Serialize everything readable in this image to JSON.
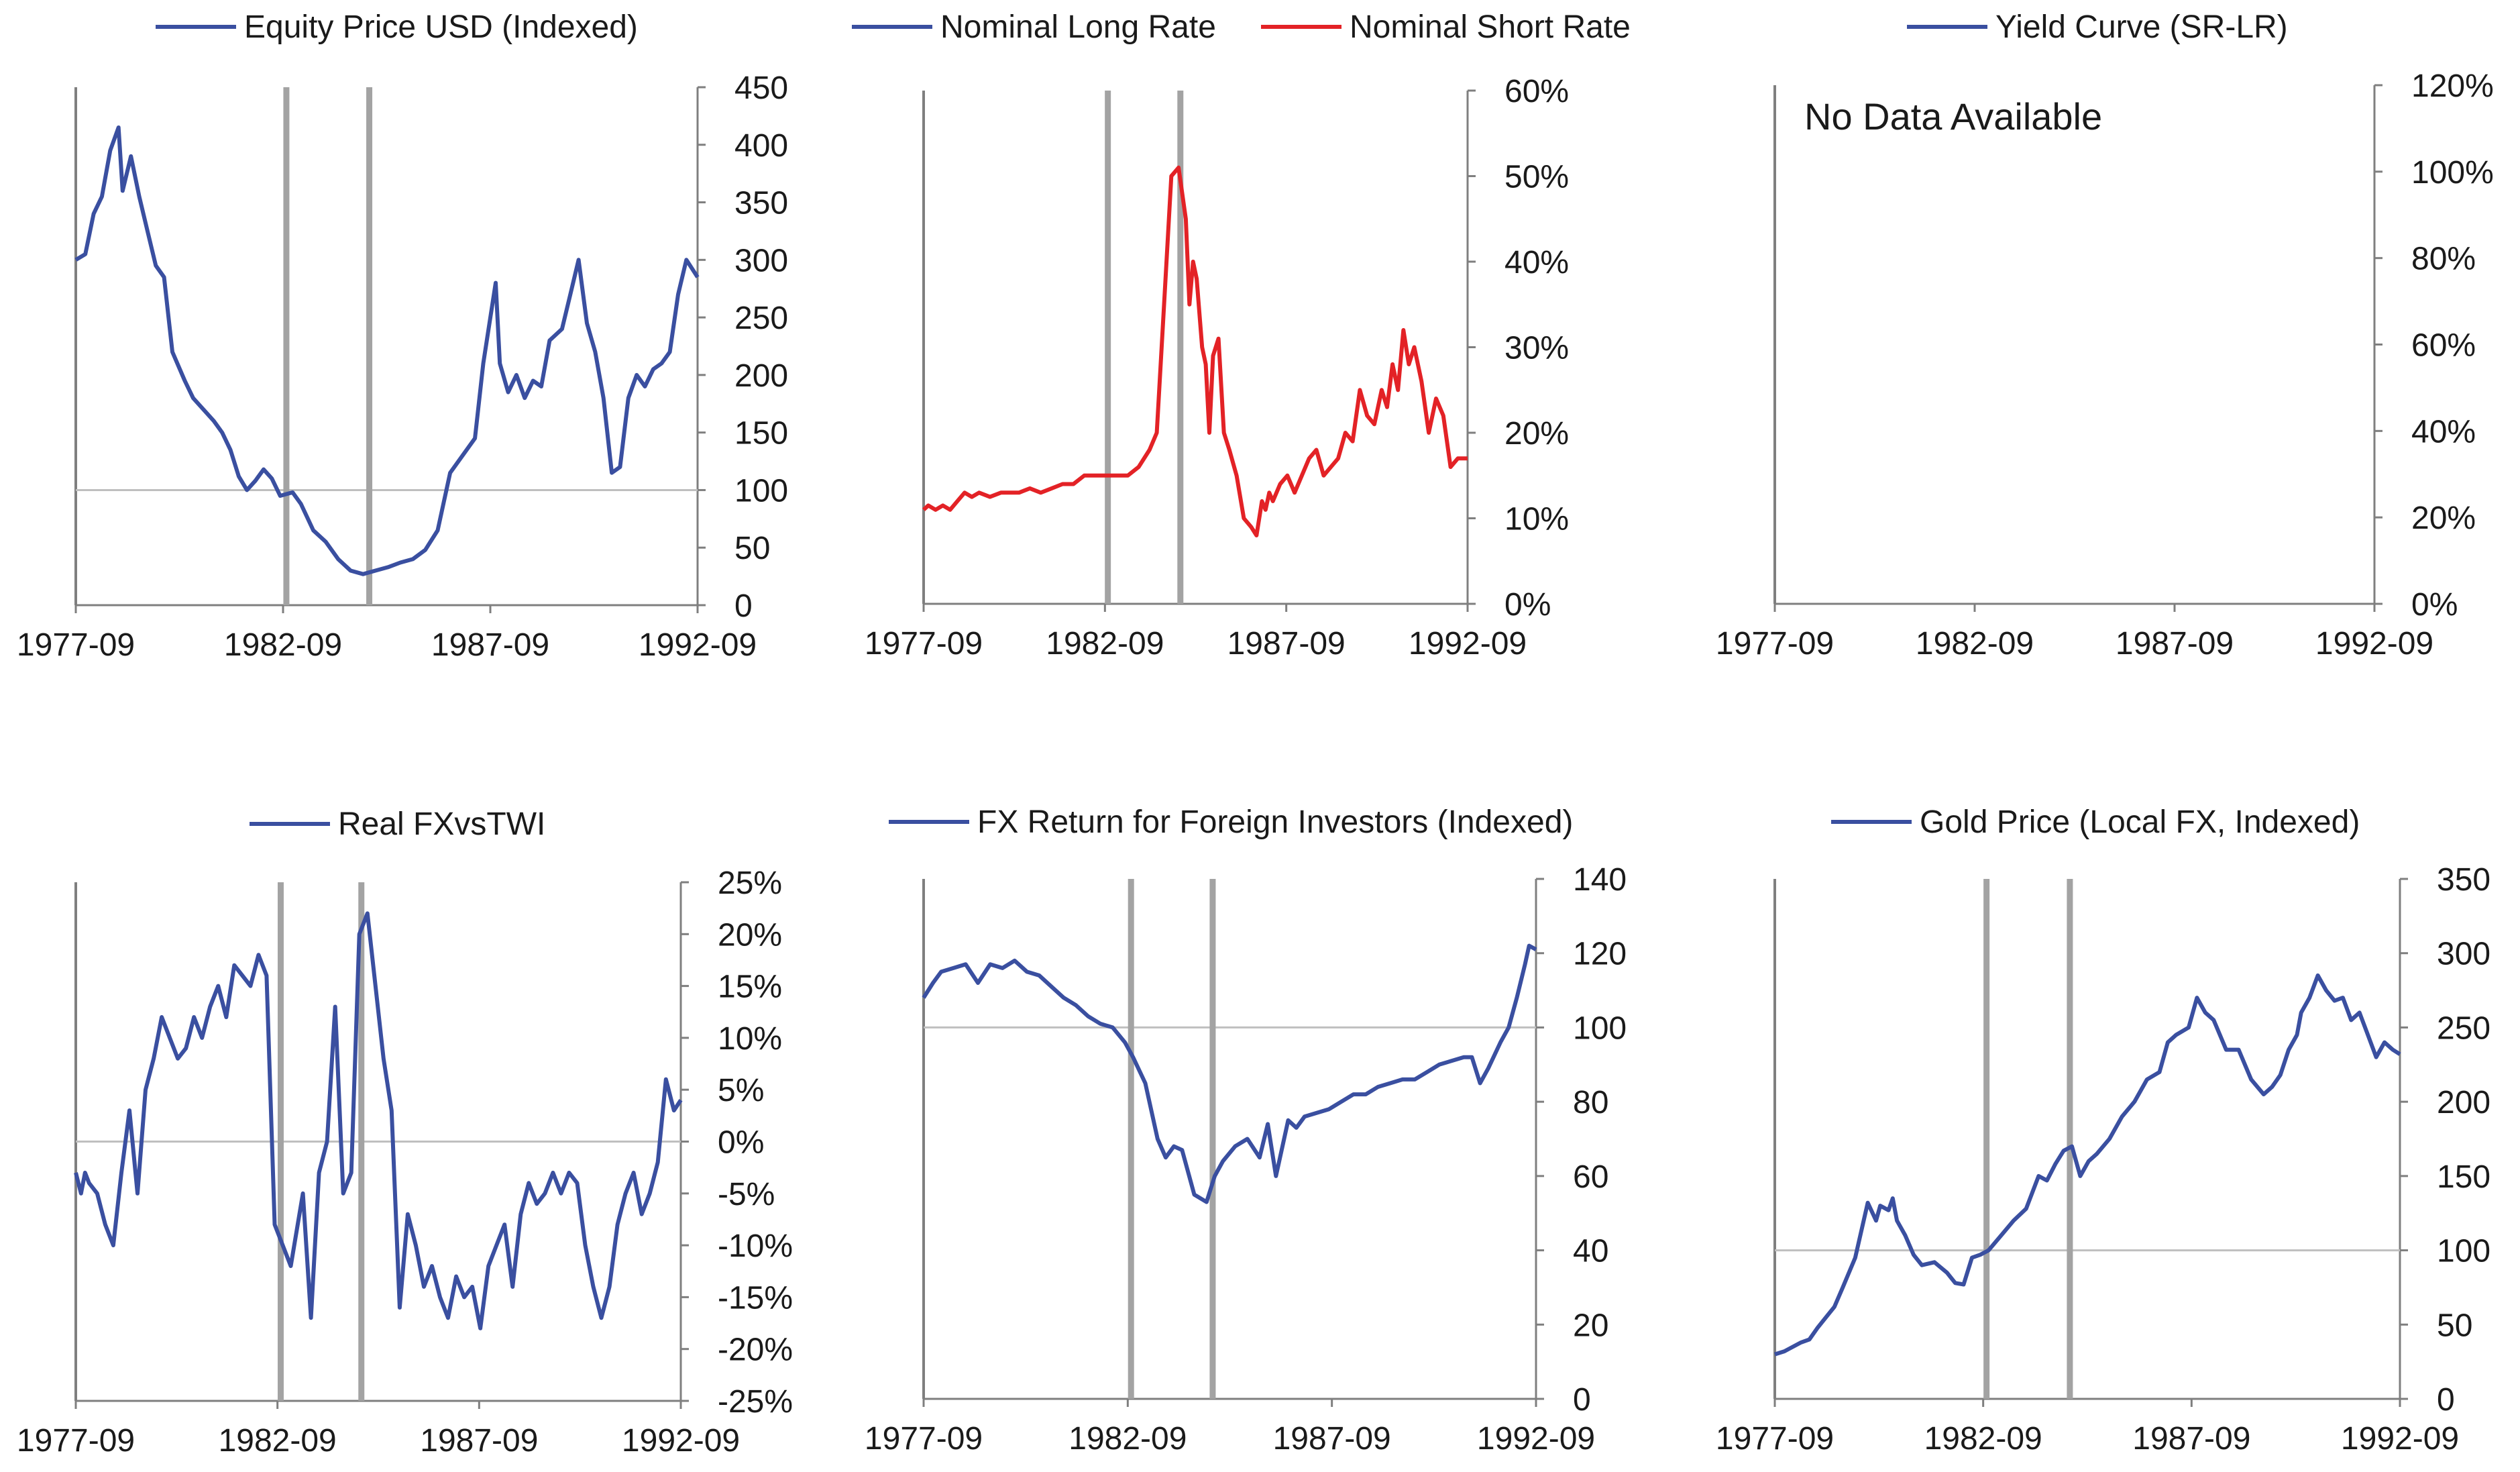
{
  "colors": {
    "blue": "#3a4fa0",
    "red": "#e32226",
    "event_line": "#a3a3a3",
    "axis": "#7f7f7f",
    "baseline": "#bfbfbf"
  },
  "chart_data": [
    {
      "id": "equity",
      "type": "line",
      "legend": [
        "Equity Price USD (Indexed)"
      ],
      "x_ticks": [
        "1977-09",
        "1982-09",
        "1987-09",
        "1992-09"
      ],
      "xlim": [
        1977.67,
        1992.67
      ],
      "y_ticks": [
        "450",
        "400",
        "350",
        "300",
        "250",
        "200",
        "150",
        "100",
        "50",
        "0"
      ],
      "ylim": [
        0,
        450
      ],
      "baseline": 100,
      "event_lines": [
        1982.75,
        1984.75
      ],
      "series": [
        {
          "name": "Equity Price USD (Indexed)",
          "color": "blue",
          "x": [
            1977.67,
            1977.9,
            1978.1,
            1978.3,
            1978.5,
            1978.7,
            1978.8,
            1979.0,
            1979.2,
            1979.4,
            1979.6,
            1979.8,
            1980.0,
            1980.3,
            1980.5,
            1980.8,
            1981.0,
            1981.2,
            1981.4,
            1981.6,
            1981.8,
            1982.0,
            1982.2,
            1982.4,
            1982.6,
            1982.9,
            1983.1,
            1983.4,
            1983.7,
            1984.0,
            1984.3,
            1984.6,
            1984.9,
            1985.2,
            1985.5,
            1985.8,
            1986.1,
            1986.4,
            1986.7,
            1987.0,
            1987.3,
            1987.5,
            1987.8,
            1987.9,
            1988.1,
            1988.3,
            1988.5,
            1988.7,
            1988.9,
            1989.1,
            1989.4,
            1989.6,
            1989.8,
            1990.0,
            1990.2,
            1990.4,
            1990.6,
            1990.8,
            1991.0,
            1991.2,
            1991.4,
            1991.6,
            1991.8,
            1992.0,
            1992.2,
            1992.4,
            1992.67
          ],
          "y": [
            300,
            305,
            340,
            355,
            395,
            415,
            360,
            390,
            355,
            325,
            295,
            285,
            220,
            195,
            180,
            168,
            160,
            150,
            135,
            112,
            100,
            108,
            118,
            110,
            95,
            98,
            88,
            65,
            55,
            40,
            30,
            27,
            30,
            33,
            37,
            40,
            48,
            65,
            115,
            130,
            145,
            210,
            280,
            210,
            185,
            200,
            180,
            195,
            190,
            230,
            240,
            270,
            300,
            245,
            220,
            180,
            115,
            120,
            180,
            200,
            190,
            205,
            210,
            220,
            270,
            300,
            285
          ]
        }
      ]
    },
    {
      "id": "rates",
      "type": "line",
      "legend": [
        "Nominal Long Rate",
        "Nominal Short Rate"
      ],
      "x_ticks": [
        "1977-09",
        "1982-09",
        "1987-09",
        "1992-09"
      ],
      "xlim": [
        1977.67,
        1992.67
      ],
      "y_ticks": [
        "60%",
        "50%",
        "40%",
        "30%",
        "20%",
        "10%",
        "0%"
      ],
      "ylim": [
        0,
        60
      ],
      "event_lines": [
        1982.75,
        1984.75
      ],
      "series": [
        {
          "name": "Nominal Long Rate",
          "color": "blue",
          "x": [],
          "y": []
        },
        {
          "name": "Nominal Short Rate",
          "color": "red",
          "x": [
            1977.67,
            1977.8,
            1978.0,
            1978.2,
            1978.4,
            1978.6,
            1978.8,
            1979.0,
            1979.2,
            1979.5,
            1979.8,
            1980.0,
            1980.3,
            1980.6,
            1980.9,
            1981.2,
            1981.5,
            1981.8,
            1982.1,
            1982.4,
            1982.7,
            1983.0,
            1983.3,
            1983.6,
            1983.9,
            1984.1,
            1984.3,
            1984.5,
            1984.7,
            1984.9,
            1985.0,
            1985.1,
            1985.2,
            1985.35,
            1985.45,
            1985.55,
            1985.65,
            1985.8,
            1985.95,
            1986.1,
            1986.3,
            1986.5,
            1986.7,
            1986.85,
            1987.0,
            1987.1,
            1987.2,
            1987.3,
            1987.5,
            1987.7,
            1987.9,
            1988.1,
            1988.3,
            1988.5,
            1988.7,
            1988.9,
            1989.1,
            1989.3,
            1989.5,
            1989.7,
            1989.9,
            1990.1,
            1990.3,
            1990.45,
            1990.6,
            1990.75,
            1990.9,
            1991.05,
            1991.2,
            1991.4,
            1991.6,
            1991.8,
            1992.0,
            1992.2,
            1992.4,
            1992.67
          ],
          "y": [
            11,
            11.5,
            11,
            11.5,
            11,
            12,
            13,
            12.5,
            13,
            12.5,
            13,
            13,
            13,
            13.5,
            13,
            13.5,
            14,
            14,
            15,
            15,
            15,
            15,
            15,
            16,
            18,
            20,
            35,
            50,
            51,
            45,
            35,
            40,
            38,
            30,
            28,
            20,
            29,
            31,
            20,
            18,
            15,
            10,
            9,
            8,
            12,
            11,
            13,
            12,
            14,
            15,
            13,
            15,
            17,
            18,
            15,
            16,
            17,
            20,
            19,
            25,
            22,
            21,
            25,
            23,
            28,
            25,
            32,
            28,
            30,
            26,
            20,
            24,
            22,
            16,
            17,
            17
          ]
        }
      ]
    },
    {
      "id": "yield",
      "type": "line",
      "legend": [
        "Yield Curve (SR-LR)"
      ],
      "note": "No Data Available",
      "x_ticks": [
        "1977-09",
        "1982-09",
        "1987-09",
        "1992-09"
      ],
      "xlim": [
        1977.67,
        1992.67
      ],
      "y_ticks": [
        "120%",
        "100%",
        "80%",
        "60%",
        "40%",
        "20%",
        "0%"
      ],
      "ylim": [
        0,
        120
      ],
      "event_lines": [],
      "series": [
        {
          "name": "Yield Curve (SR-LR)",
          "color": "blue",
          "x": [],
          "y": []
        }
      ]
    },
    {
      "id": "fx_twi",
      "type": "line",
      "legend": [
        "Real FXvsTWI"
      ],
      "x_ticks": [
        "1977-09",
        "1982-09",
        "1987-09",
        "1992-09"
      ],
      "xlim": [
        1977.67,
        1992.67
      ],
      "y_ticks": [
        "25%",
        "20%",
        "15%",
        "10%",
        "5%",
        "0%",
        "-5%",
        "-10%",
        "-15%",
        "-20%",
        "-25%"
      ],
      "ylim": [
        -25,
        25
      ],
      "baseline": 0,
      "event_lines": [
        1982.75,
        1984.75
      ],
      "series": [
        {
          "name": "Real FXvsTWI",
          "color": "blue",
          "x": [
            1977.67,
            1977.8,
            1977.9,
            1978.0,
            1978.2,
            1978.4,
            1978.6,
            1978.8,
            1979.0,
            1979.2,
            1979.4,
            1979.6,
            1979.8,
            1980.0,
            1980.2,
            1980.4,
            1980.6,
            1980.8,
            1981.0,
            1981.2,
            1981.4,
            1981.6,
            1981.8,
            1982.0,
            1982.2,
            1982.4,
            1982.6,
            1982.8,
            1983.0,
            1983.3,
            1983.5,
            1983.7,
            1983.9,
            1984.1,
            1984.3,
            1984.5,
            1984.7,
            1984.9,
            1985.1,
            1985.3,
            1985.5,
            1985.7,
            1985.9,
            1986.1,
            1986.3,
            1986.5,
            1986.7,
            1986.9,
            1987.1,
            1987.3,
            1987.5,
            1987.7,
            1987.9,
            1988.1,
            1988.3,
            1988.5,
            1988.7,
            1988.9,
            1989.1,
            1989.3,
            1989.5,
            1989.7,
            1989.9,
            1990.1,
            1990.3,
            1990.5,
            1990.7,
            1990.9,
            1991.1,
            1991.3,
            1991.5,
            1991.7,
            1991.9,
            1992.1,
            1992.3,
            1992.5,
            1992.67
          ],
          "y": [
            -3,
            -5,
            -3,
            -4,
            -5,
            -8,
            -10,
            -3,
            3,
            -5,
            5,
            8,
            12,
            10,
            8,
            9,
            12,
            10,
            13,
            15,
            12,
            17,
            16,
            15,
            18,
            16,
            -8,
            -10,
            -12,
            -5,
            -17,
            -3,
            0,
            13,
            -5,
            -3,
            20,
            22,
            15,
            8,
            3,
            -16,
            -7,
            -10,
            -14,
            -12,
            -15,
            -17,
            -13,
            -15,
            -14,
            -18,
            -12,
            -10,
            -8,
            -14,
            -7,
            -4,
            -6,
            -5,
            -3,
            -5,
            -3,
            -4,
            -10,
            -14,
            -17,
            -14,
            -8,
            -5,
            -3,
            -7,
            -5,
            -2,
            6,
            3,
            4
          ]
        }
      ]
    },
    {
      "id": "fx_return",
      "type": "line",
      "legend": [
        "FX Return for Foreign Investors (Indexed)"
      ],
      "x_ticks": [
        "1977-09",
        "1982-09",
        "1987-09",
        "1992-09"
      ],
      "xlim": [
        1977.67,
        1992.67
      ],
      "y_ticks": [
        "140",
        "120",
        "100",
        "80",
        "60",
        "40",
        "20",
        "0"
      ],
      "ylim": [
        0,
        140
      ],
      "baseline": 100,
      "event_lines": [
        1982.75,
        1984.75
      ],
      "series": [
        {
          "name": "FX Return for Foreign Investors (Indexed)",
          "color": "blue",
          "x": [
            1977.67,
            1977.9,
            1978.1,
            1978.4,
            1978.7,
            1979.0,
            1979.3,
            1979.6,
            1979.9,
            1980.2,
            1980.5,
            1980.8,
            1981.1,
            1981.4,
            1981.7,
            1982.0,
            1982.3,
            1982.6,
            1982.8,
            1983.1,
            1983.4,
            1983.6,
            1983.8,
            1984.0,
            1984.3,
            1984.6,
            1984.8,
            1985.0,
            1985.3,
            1985.6,
            1985.9,
            1986.1,
            1986.3,
            1986.6,
            1986.8,
            1987.0,
            1987.3,
            1987.6,
            1987.9,
            1988.2,
            1988.5,
            1988.8,
            1989.1,
            1989.4,
            1989.7,
            1990.0,
            1990.3,
            1990.6,
            1990.9,
            1991.1,
            1991.3,
            1991.5,
            1991.8,
            1992.0,
            1992.2,
            1992.4,
            1992.5,
            1992.67
          ],
          "y": [
            108,
            112,
            115,
            116,
            117,
            112,
            117,
            116,
            118,
            115,
            114,
            111,
            108,
            106,
            103,
            101,
            100,
            96,
            92,
            85,
            70,
            65,
            68,
            67,
            55,
            53,
            60,
            64,
            68,
            70,
            65,
            74,
            60,
            75,
            73,
            76,
            77,
            78,
            80,
            82,
            82,
            84,
            85,
            86,
            86,
            88,
            90,
            91,
            92,
            92,
            85,
            89,
            96,
            100,
            108,
            117,
            122,
            121
          ]
        }
      ]
    },
    {
      "id": "gold",
      "type": "line",
      "legend": [
        "Gold Price (Local FX, Indexed)"
      ],
      "x_ticks": [
        "1977-09",
        "1982-09",
        "1987-09",
        "1992-09"
      ],
      "xlim": [
        1977.67,
        1992.67
      ],
      "y_ticks": [
        "350",
        "300",
        "250",
        "200",
        "150",
        "100",
        "50",
        "0"
      ],
      "ylim": [
        0,
        350
      ],
      "baseline": 100,
      "event_lines": [
        1982.75,
        1984.75
      ],
      "series": [
        {
          "name": "Gold Price (Local FX, Indexed)",
          "color": "blue",
          "x": [
            1977.67,
            1977.9,
            1978.1,
            1978.3,
            1978.5,
            1978.7,
            1978.9,
            1979.1,
            1979.3,
            1979.6,
            1979.9,
            1980.1,
            1980.2,
            1980.4,
            1980.5,
            1980.6,
            1980.8,
            1981.0,
            1981.2,
            1981.5,
            1981.8,
            1982.0,
            1982.2,
            1982.4,
            1982.6,
            1982.8,
            1983.1,
            1983.4,
            1983.7,
            1984.0,
            1984.2,
            1984.4,
            1984.6,
            1984.8,
            1985.0,
            1985.2,
            1985.4,
            1985.7,
            1986.0,
            1986.3,
            1986.6,
            1986.9,
            1987.1,
            1987.3,
            1987.6,
            1987.8,
            1988.0,
            1988.2,
            1988.5,
            1988.8,
            1989.1,
            1989.4,
            1989.6,
            1989.8,
            1990.0,
            1990.2,
            1990.3,
            1990.5,
            1990.7,
            1990.9,
            1991.1,
            1991.3,
            1991.5,
            1991.7,
            1991.9,
            1992.1,
            1992.3,
            1992.5,
            1992.67
          ],
          "y": [
            30,
            32,
            35,
            38,
            40,
            48,
            55,
            62,
            75,
            95,
            132,
            120,
            130,
            127,
            135,
            120,
            110,
            97,
            90,
            92,
            85,
            78,
            77,
            95,
            97,
            100,
            110,
            120,
            128,
            150,
            147,
            158,
            167,
            170,
            150,
            160,
            165,
            175,
            190,
            200,
            215,
            220,
            240,
            245,
            250,
            270,
            260,
            255,
            235,
            235,
            215,
            205,
            210,
            218,
            235,
            245,
            260,
            270,
            285,
            275,
            268,
            270,
            255,
            260,
            245,
            230,
            240,
            235,
            232
          ]
        }
      ]
    }
  ]
}
